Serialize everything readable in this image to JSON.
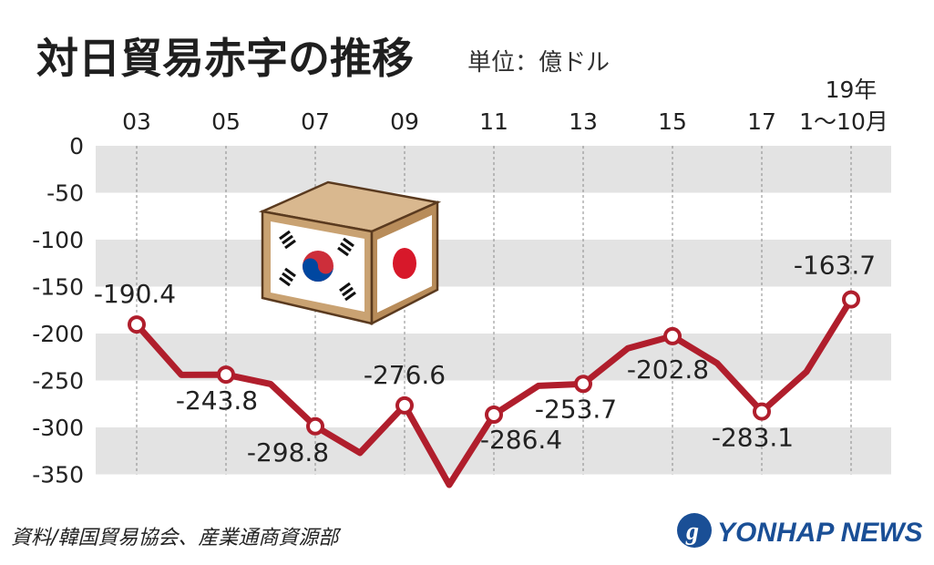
{
  "header": {
    "title": "対日貿易赤字の推移",
    "unit": "単位：億ドル"
  },
  "chart_data": {
    "type": "line",
    "x": [
      "2003",
      "2004",
      "2005",
      "2006",
      "2007",
      "2008",
      "2009",
      "2010",
      "2011",
      "2012",
      "2013",
      "2014",
      "2015",
      "2016",
      "2017",
      "2018",
      "2019 1~10月"
    ],
    "x_tick_labels": [
      {
        "label": "03",
        "x": "2003"
      },
      {
        "label": "05",
        "x": "2005"
      },
      {
        "label": "07",
        "x": "2007"
      },
      {
        "label": "09",
        "x": "2009"
      },
      {
        "label": "11",
        "x": "2011"
      },
      {
        "label": "13",
        "x": "2013"
      },
      {
        "label": "15",
        "x": "2015"
      },
      {
        "label": "17",
        "x": "2017"
      },
      {
        "label": "19年",
        "label2": "1～10月",
        "x": "2019 1~10月"
      }
    ],
    "series": [
      {
        "values": [
          -190.4,
          -244.0,
          -243.8,
          -253.8,
          -298.8,
          -327.1,
          -276.6,
          -361.2,
          -286.4,
          -255.7,
          -253.7,
          -215.8,
          -202.8,
          -231.7,
          -283.1,
          -240.8,
          -163.7
        ],
        "color": "#b01e2c"
      }
    ],
    "data_labels": [
      {
        "x": "2003",
        "text": "-190.4"
      },
      {
        "x": "2005",
        "text": "-243.8"
      },
      {
        "x": "2007",
        "text": "-298.8"
      },
      {
        "x": "2009",
        "text": "-276.6"
      },
      {
        "x": "2011",
        "text": "-286.4"
      },
      {
        "x": "2013",
        "text": "-253.7"
      },
      {
        "x": "2015",
        "text": "-202.8"
      },
      {
        "x": "2017",
        "text": "-283.1"
      },
      {
        "x": "2019 1~10月",
        "text": "-163.7"
      }
    ],
    "y_ticks": [
      "0",
      "-50",
      "-100",
      "-150",
      "-200",
      "-250",
      "-300",
      "-350"
    ],
    "ylim": [
      -350,
      0
    ],
    "grid": "alternating horizontal bands",
    "band_color": "#e3e3e3",
    "line_color": "#b01e2c"
  },
  "illustration": {
    "name": "box with Korean and Japanese flags"
  },
  "footer": {
    "source": "資料/韓国貿易協会、産業通商資源部",
    "brand": "YONHAP NEWS",
    "brand_color": "#1a4f96"
  }
}
